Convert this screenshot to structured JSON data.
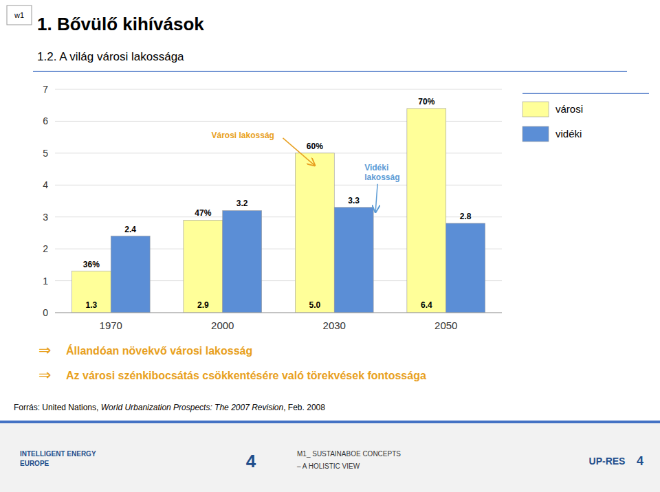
{
  "chart_data": {
    "type": "bar",
    "title": "1.  Bővülő kihívások",
    "subtitle": "1.2. A világ városi lakossága",
    "badge": "w1",
    "categories": [
      "1970",
      "2000",
      "2030",
      "2050"
    ],
    "series": [
      {
        "name": "városi",
        "color": "#FFFF99",
        "values": [
          1.3,
          2.9,
          5.0,
          6.4
        ],
        "value_labels": [
          "1.3",
          "2.9",
          "5.0",
          "6.4"
        ],
        "share_labels": [
          "36%",
          "47%",
          "60%",
          "70%"
        ]
      },
      {
        "name": "vidéki",
        "color": "#5B8ED6",
        "values": [
          2.4,
          3.2,
          3.3,
          2.8
        ]
      }
    ],
    "ylim": [
      0,
      7
    ],
    "yticks": [
      0,
      1,
      2,
      3,
      4,
      5,
      6,
      7
    ],
    "grid": true,
    "legend": "right",
    "data_labels": true,
    "annotations": [
      {
        "text": "Városi lakosság",
        "color": "#E8A020"
      },
      {
        "text": "Vidéki\nlakosság",
        "color": "#5B9BD5"
      }
    ],
    "bullet_symbol": "⇒",
    "bullet_color": "#E8A020",
    "bullets": [
      "Állandóan növekvő városi lakosság",
      "Az városi szénkibocsátás csökkentésére való törekvések fontossága"
    ],
    "source": [
      "Forrás: United Nations, ",
      "World Urbanization Prospects: The 2007 Revision",
      ", Feb. 2008"
    ],
    "footer": [
      "INTELLIGENT ENERGY\nEUROPE",
      "4",
      "M1_ SUSTAINABOE CONCEPTS",
      "– A HOLISTIC VIEW",
      "UP-RES",
      "4"
    ]
  }
}
